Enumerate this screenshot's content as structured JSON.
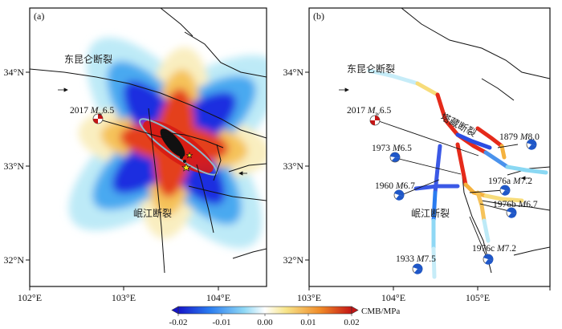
{
  "panels": [
    {
      "id": "a",
      "label": "(a)"
    },
    {
      "id": "b",
      "label": "(b)"
    }
  ],
  "axes": {
    "lon_ticks": [
      "102°E",
      "103°E",
      "104°E",
      "105°E"
    ],
    "lat_ticks": [
      "34°N",
      "33°N",
      "32°N"
    ]
  },
  "faults": {
    "east_kunlun": "东昆仑断裂",
    "minjiang": "岷江断裂",
    "tazang": "塔藏断裂"
  },
  "events_a": [
    {
      "id": "2017",
      "year": "2017",
      "mag_symbol": "M",
      "mag_sub": "w",
      "mag_value": "6.5"
    }
  ],
  "events_b": [
    {
      "id": "2017",
      "year": "2017",
      "mag_symbol": "M",
      "mag_sub": "w",
      "mag_value": "6.5"
    },
    {
      "id": "1879",
      "year": "1879",
      "mag_symbol": "M",
      "mag_sub": "",
      "mag_value": "8.0"
    },
    {
      "id": "1973",
      "year": "1973",
      "mag_symbol": "M",
      "mag_sub": "",
      "mag_value": "6.5"
    },
    {
      "id": "1976a",
      "year": "1976a",
      "mag_symbol": "M",
      "mag_sub": "",
      "mag_value": "7.2"
    },
    {
      "id": "1960",
      "year": "1960",
      "mag_symbol": "M",
      "mag_sub": "",
      "mag_value": "6.7"
    },
    {
      "id": "1976b",
      "year": "1976b",
      "mag_symbol": "M",
      "mag_sub": "",
      "mag_value": "6.7"
    },
    {
      "id": "1976c",
      "year": "1976c",
      "mag_symbol": "M",
      "mag_sub": "",
      "mag_value": "7.2"
    },
    {
      "id": "1933",
      "year": "1933",
      "mag_symbol": "M",
      "mag_sub": "",
      "mag_value": "7.5"
    }
  ],
  "colorbar": {
    "title": "CMB/MPa",
    "ticks": [
      "-0.02",
      "-0.01",
      "0.00",
      "0.01",
      "0.02"
    ],
    "colors": [
      "#1515c8",
      "#2a7cf0",
      "#8fd8f5",
      "#ffffff",
      "#f7e58a",
      "#f08a28",
      "#c41515"
    ]
  }
}
